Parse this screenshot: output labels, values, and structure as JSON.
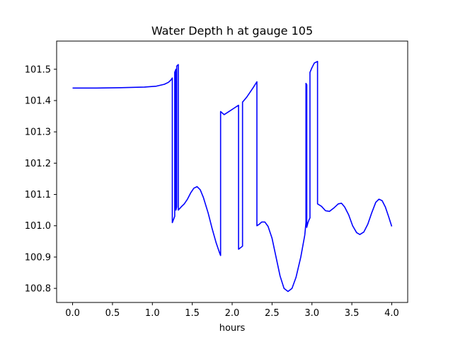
{
  "chart_data": {
    "type": "line",
    "title": "Water Depth h at gauge 105",
    "xlabel": "hours",
    "ylabel": "",
    "xlim": [
      -0.2,
      4.2
    ],
    "ylim": [
      100.755,
      101.59
    ],
    "xticks": [
      0.0,
      0.5,
      1.0,
      1.5,
      2.0,
      2.5,
      3.0,
      3.5,
      4.0
    ],
    "xtick_labels": [
      "0.0",
      "0.5",
      "1.0",
      "1.5",
      "2.0",
      "2.5",
      "3.0",
      "3.5",
      "4.0"
    ],
    "yticks": [
      100.8,
      100.9,
      101.0,
      101.1,
      101.2,
      101.3,
      101.4,
      101.5
    ],
    "ytick_labels": [
      "100.8",
      "100.9",
      "101.0",
      "101.1",
      "101.2",
      "101.3",
      "101.4",
      "101.5"
    ],
    "grid": false,
    "legend": "none",
    "series": [
      {
        "color": "#0000ff",
        "points": [
          [
            0.0,
            101.44
          ],
          [
            0.3,
            101.44
          ],
          [
            0.6,
            101.441
          ],
          [
            0.9,
            101.443
          ],
          [
            1.05,
            101.446
          ],
          [
            1.15,
            101.452
          ],
          [
            1.2,
            101.458
          ],
          [
            1.23,
            101.465
          ],
          [
            1.25,
            101.472
          ],
          [
            1.25,
            101.01
          ],
          [
            1.28,
            101.03
          ],
          [
            1.28,
            101.49
          ],
          [
            1.295,
            101.5
          ],
          [
            1.295,
            101.05
          ],
          [
            1.305,
            101.06
          ],
          [
            1.305,
            101.51
          ],
          [
            1.325,
            101.515
          ],
          [
            1.325,
            101.05
          ],
          [
            1.36,
            101.06
          ],
          [
            1.4,
            101.07
          ],
          [
            1.44,
            101.085
          ],
          [
            1.48,
            101.105
          ],
          [
            1.52,
            101.12
          ],
          [
            1.56,
            101.125
          ],
          [
            1.6,
            101.115
          ],
          [
            1.64,
            101.09
          ],
          [
            1.7,
            101.04
          ],
          [
            1.75,
            100.99
          ],
          [
            1.8,
            100.945
          ],
          [
            1.84,
            100.915
          ],
          [
            1.855,
            100.905
          ],
          [
            1.855,
            101.365
          ],
          [
            1.9,
            101.355
          ],
          [
            1.96,
            101.365
          ],
          [
            2.02,
            101.375
          ],
          [
            2.08,
            101.385
          ],
          [
            2.08,
            100.925
          ],
          [
            2.13,
            100.935
          ],
          [
            2.13,
            101.395
          ],
          [
            2.18,
            101.41
          ],
          [
            2.22,
            101.425
          ],
          [
            2.26,
            101.44
          ],
          [
            2.31,
            101.46
          ],
          [
            2.31,
            101.0
          ],
          [
            2.34,
            101.005
          ],
          [
            2.37,
            101.012
          ],
          [
            2.41,
            101.012
          ],
          [
            2.45,
            100.998
          ],
          [
            2.5,
            100.96
          ],
          [
            2.55,
            100.9
          ],
          [
            2.6,
            100.84
          ],
          [
            2.65,
            100.8
          ],
          [
            2.7,
            100.79
          ],
          [
            2.75,
            100.8
          ],
          [
            2.8,
            100.835
          ],
          [
            2.86,
            100.9
          ],
          [
            2.91,
            100.97
          ],
          [
            2.925,
            101.01
          ],
          [
            2.925,
            101.455
          ],
          [
            2.935,
            101.45
          ],
          [
            2.935,
            100.995
          ],
          [
            2.95,
            101.01
          ],
          [
            2.965,
            101.02
          ],
          [
            2.975,
            101.025
          ],
          [
            2.975,
            101.49
          ],
          [
            3.0,
            101.505
          ],
          [
            3.03,
            101.52
          ],
          [
            3.07,
            101.525
          ],
          [
            3.07,
            101.07
          ],
          [
            3.12,
            101.062
          ],
          [
            3.17,
            101.048
          ],
          [
            3.22,
            101.046
          ],
          [
            3.28,
            101.058
          ],
          [
            3.33,
            101.07
          ],
          [
            3.37,
            101.072
          ],
          [
            3.41,
            101.06
          ],
          [
            3.46,
            101.035
          ],
          [
            3.51,
            101.0
          ],
          [
            3.56,
            100.978
          ],
          [
            3.6,
            100.972
          ],
          [
            3.65,
            100.98
          ],
          [
            3.7,
            101.005
          ],
          [
            3.75,
            101.042
          ],
          [
            3.8,
            101.075
          ],
          [
            3.84,
            101.085
          ],
          [
            3.88,
            101.08
          ],
          [
            3.92,
            101.06
          ],
          [
            3.96,
            101.03
          ],
          [
            4.0,
            100.998
          ]
        ]
      }
    ]
  }
}
